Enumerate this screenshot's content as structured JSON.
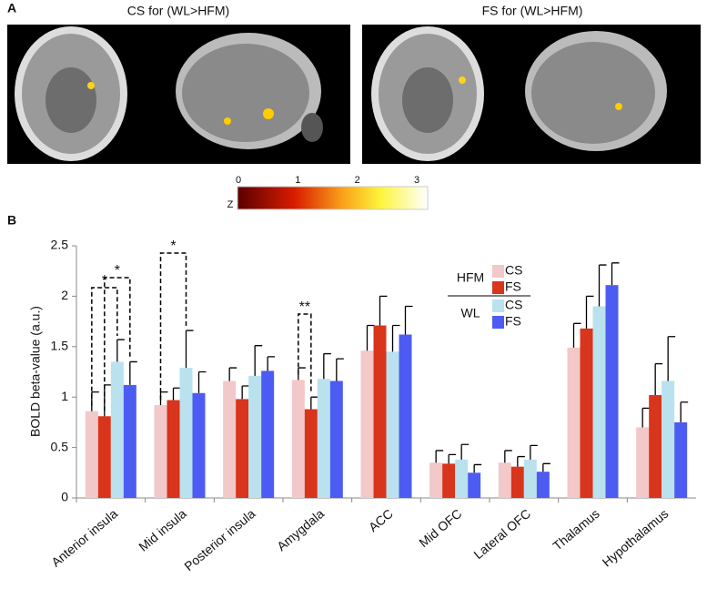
{
  "panel_labels": [
    "A",
    "B"
  ],
  "images": [
    {
      "title": "CS for (WL>HFM)"
    },
    {
      "title": "FS for (WL>HFM)"
    }
  ],
  "colorbar": {
    "label": "Z",
    "ticks": [
      0,
      1,
      2,
      3
    ],
    "lim": [
      0,
      3
    ]
  },
  "chart_data": {
    "type": "bar",
    "ylabel": "BOLD beta-value (a.u.)",
    "categories": [
      "Anterior insula",
      "Mid insula",
      "Posterior insula",
      "Amygdala",
      "ACC",
      "Mid OFC",
      "Lateral OFC",
      "Thalamus",
      "Hypothalamus"
    ],
    "series": [
      {
        "name": "CS",
        "group": "HFM",
        "color": "#f2c8c8",
        "values": [
          0.86,
          0.92,
          1.16,
          1.17,
          1.46,
          0.35,
          0.35,
          1.49,
          0.7
        ],
        "errors": [
          0.19,
          0.13,
          0.13,
          0.12,
          0.25,
          0.12,
          0.12,
          0.24,
          0.19
        ]
      },
      {
        "name": "FS",
        "group": "HFM",
        "color": "#d9341c",
        "values": [
          0.81,
          0.97,
          0.98,
          0.88,
          1.71,
          0.34,
          0.31,
          1.68,
          1.02
        ],
        "errors": [
          0.31,
          0.12,
          0.13,
          0.12,
          0.29,
          0.09,
          0.1,
          0.32,
          0.31
        ]
      },
      {
        "name": "CS",
        "group": "WL",
        "color": "#b9e1ee",
        "values": [
          1.35,
          1.29,
          1.21,
          1.18,
          1.45,
          0.38,
          0.38,
          1.9,
          1.16
        ],
        "errors": [
          0.22,
          0.37,
          0.3,
          0.25,
          0.26,
          0.15,
          0.14,
          0.41,
          0.44
        ]
      },
      {
        "name": "FS",
        "group": "WL",
        "color": "#4c5cf2",
        "values": [
          1.12,
          1.04,
          1.26,
          1.16,
          1.62,
          0.25,
          0.26,
          2.11,
          0.75
        ],
        "errors": [
          0.23,
          0.21,
          0.14,
          0.22,
          0.28,
          0.08,
          0.08,
          0.22,
          0.2
        ]
      }
    ],
    "annotations": [
      "*",
      "*",
      "*",
      "**"
    ],
    "ylim": [
      0,
      2.5
    ],
    "yticks": [
      0,
      0.5,
      1,
      1.5,
      2,
      2.5
    ]
  }
}
